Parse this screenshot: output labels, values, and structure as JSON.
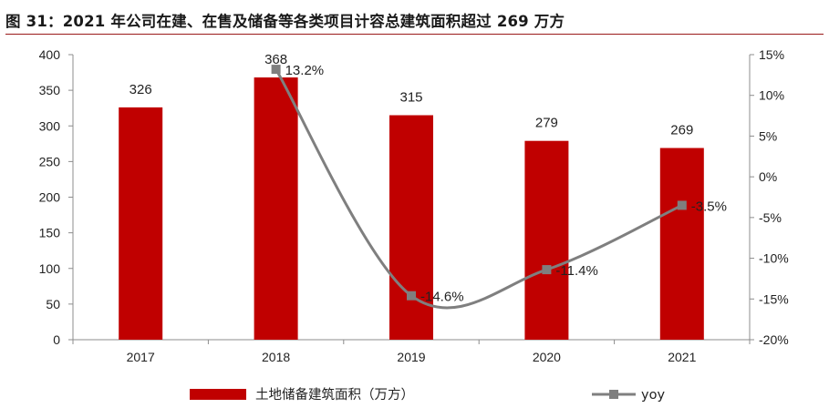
{
  "title": "图 31：2021 年公司在建、在售及储备等各类项目计容总建筑面积超过 269 万方",
  "chart_data": {
    "type": "bar",
    "categories": [
      "2017",
      "2018",
      "2019",
      "2020",
      "2021"
    ],
    "series": [
      {
        "name": "土地储备建筑面积（万方）",
        "type": "bar",
        "axis": "left",
        "color": "#c00000",
        "values": [
          326,
          368,
          315,
          279,
          269
        ],
        "labels": [
          "326",
          "368",
          "315",
          "279",
          "269"
        ]
      },
      {
        "name": "yoy",
        "type": "line",
        "axis": "right",
        "color": "#7f7f7f",
        "values": [
          null,
          13.2,
          -14.6,
          -11.4,
          -3.5
        ],
        "labels": [
          "",
          "13.2%",
          "-14.6%",
          "-11.4%",
          "-3.5%"
        ]
      }
    ],
    "y_left": {
      "min": 0,
      "max": 400,
      "step": 50,
      "ticks": [
        "0",
        "50",
        "100",
        "150",
        "200",
        "250",
        "300",
        "350",
        "400"
      ]
    },
    "y_right": {
      "min": -20,
      "max": 15,
      "step": 5,
      "ticks": [
        "-20%",
        "-15%",
        "-10%",
        "-5%",
        "0%",
        "5%",
        "10%",
        "15%"
      ]
    },
    "grid": false,
    "legend_position": "bottom"
  }
}
